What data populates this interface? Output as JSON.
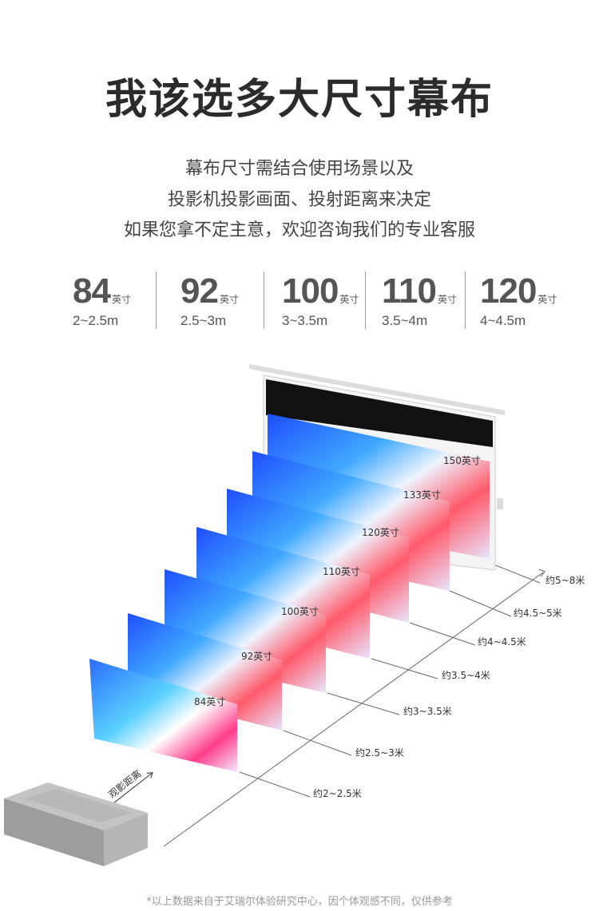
{
  "title": "我该选多大尺寸幕布",
  "subtitle": [
    "幕布尺寸需结合使用场景以及",
    "投影机投影画面、投射距离来决定",
    "如果您拿不定主意，欢迎咨询我们的专业客服"
  ],
  "sizes": [
    {
      "size": "84",
      "unit": "英寸",
      "range": "2~2.5m"
    },
    {
      "size": "92",
      "unit": "英寸",
      "range": "2.5~3m"
    },
    {
      "size": "100",
      "unit": "英寸",
      "range": "3~3.5m"
    },
    {
      "size": "110",
      "unit": "英寸",
      "range": "3.5~4m"
    },
    {
      "size": "120",
      "unit": "英寸",
      "range": "4~4.5m"
    }
  ],
  "screens": [
    "84英寸",
    "92英寸",
    "100英寸",
    "110英寸",
    "120英寸",
    "133英寸",
    "150英寸"
  ],
  "distances": [
    "约2~2.5米",
    "约2.5~3米",
    "约3~3.5米",
    "约3.5~4米",
    "约4~4.5米",
    "约4.5~5米",
    "约5~8米"
  ],
  "viewing_distance_label": "观影距离",
  "footnote": "*以上数据来自于艾瑞尔体验研究中心，因个体观感不同，仅供参考",
  "colors": {
    "title": "#2b2b2b",
    "text": "#555555"
  }
}
